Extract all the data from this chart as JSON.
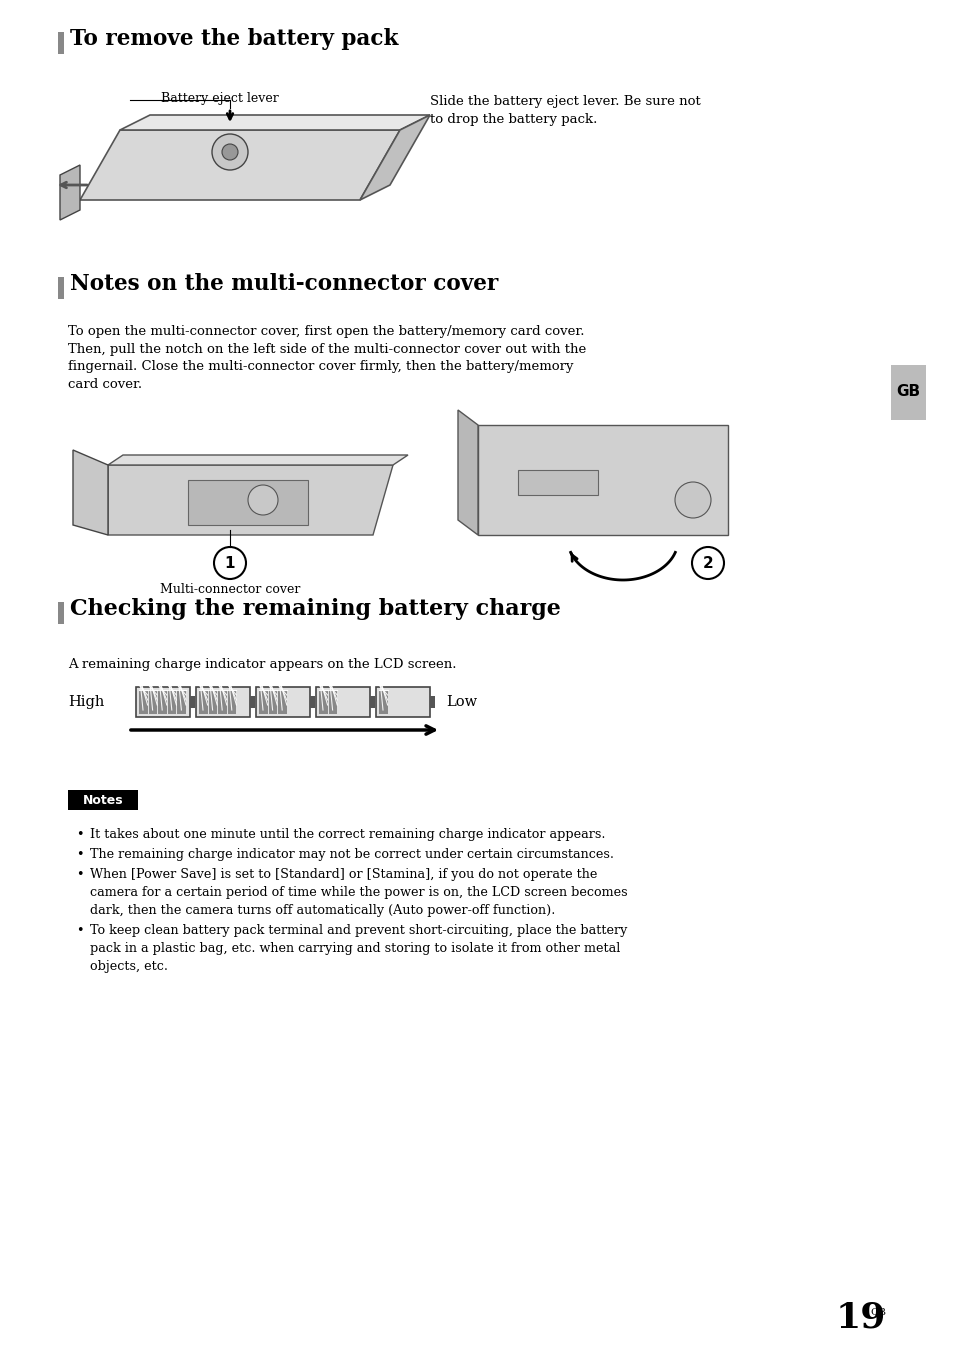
{
  "bg_color": "#ffffff",
  "lm": 0.075,
  "rm": 0.925,
  "section1_title": "To remove the battery pack",
  "section1_body_label": "Battery eject lever",
  "section1_body_text": "Slide the battery eject lever. Be sure not\nto drop the battery pack.",
  "section2_title": "Notes on the multi-connector cover",
  "section2_body": "To open the multi-connector cover, first open the battery/memory card cover.\nThen, pull the notch on the left side of the multi-connector cover out with the\nfingernail. Close the multi-connector cover firmly, then the battery/memory\ncard cover.",
  "section2_label": "Multi-connector cover",
  "section3_title": "Checking the remaining battery charge",
  "section3_body": "A remaining charge indicator appears on the LCD screen.",
  "high_label": "High",
  "low_label": "Low",
  "notes_label": "Notes",
  "notes_items": [
    "It takes about one minute until the correct remaining charge indicator appears.",
    "The remaining charge indicator may not be correct under certain circumstances.",
    "When [Power Save] is set to [Standard] or [Stamina], if you do not operate the\ncamera for a certain period of time while the power is on, the LCD screen becomes\ndark, then the camera turns off automatically (Auto power-off function).",
    "To keep clean battery pack terminal and prevent short-circuiting, place the battery\npack in a plastic bag, etc. when carrying and storing to isolate it from other metal\nobjects, etc."
  ],
  "gb_label": "GB",
  "page_number": "19",
  "notes_bg": "#000000",
  "notes_fg": "#ffffff",
  "sidebar_gray": "#aaaaaa"
}
